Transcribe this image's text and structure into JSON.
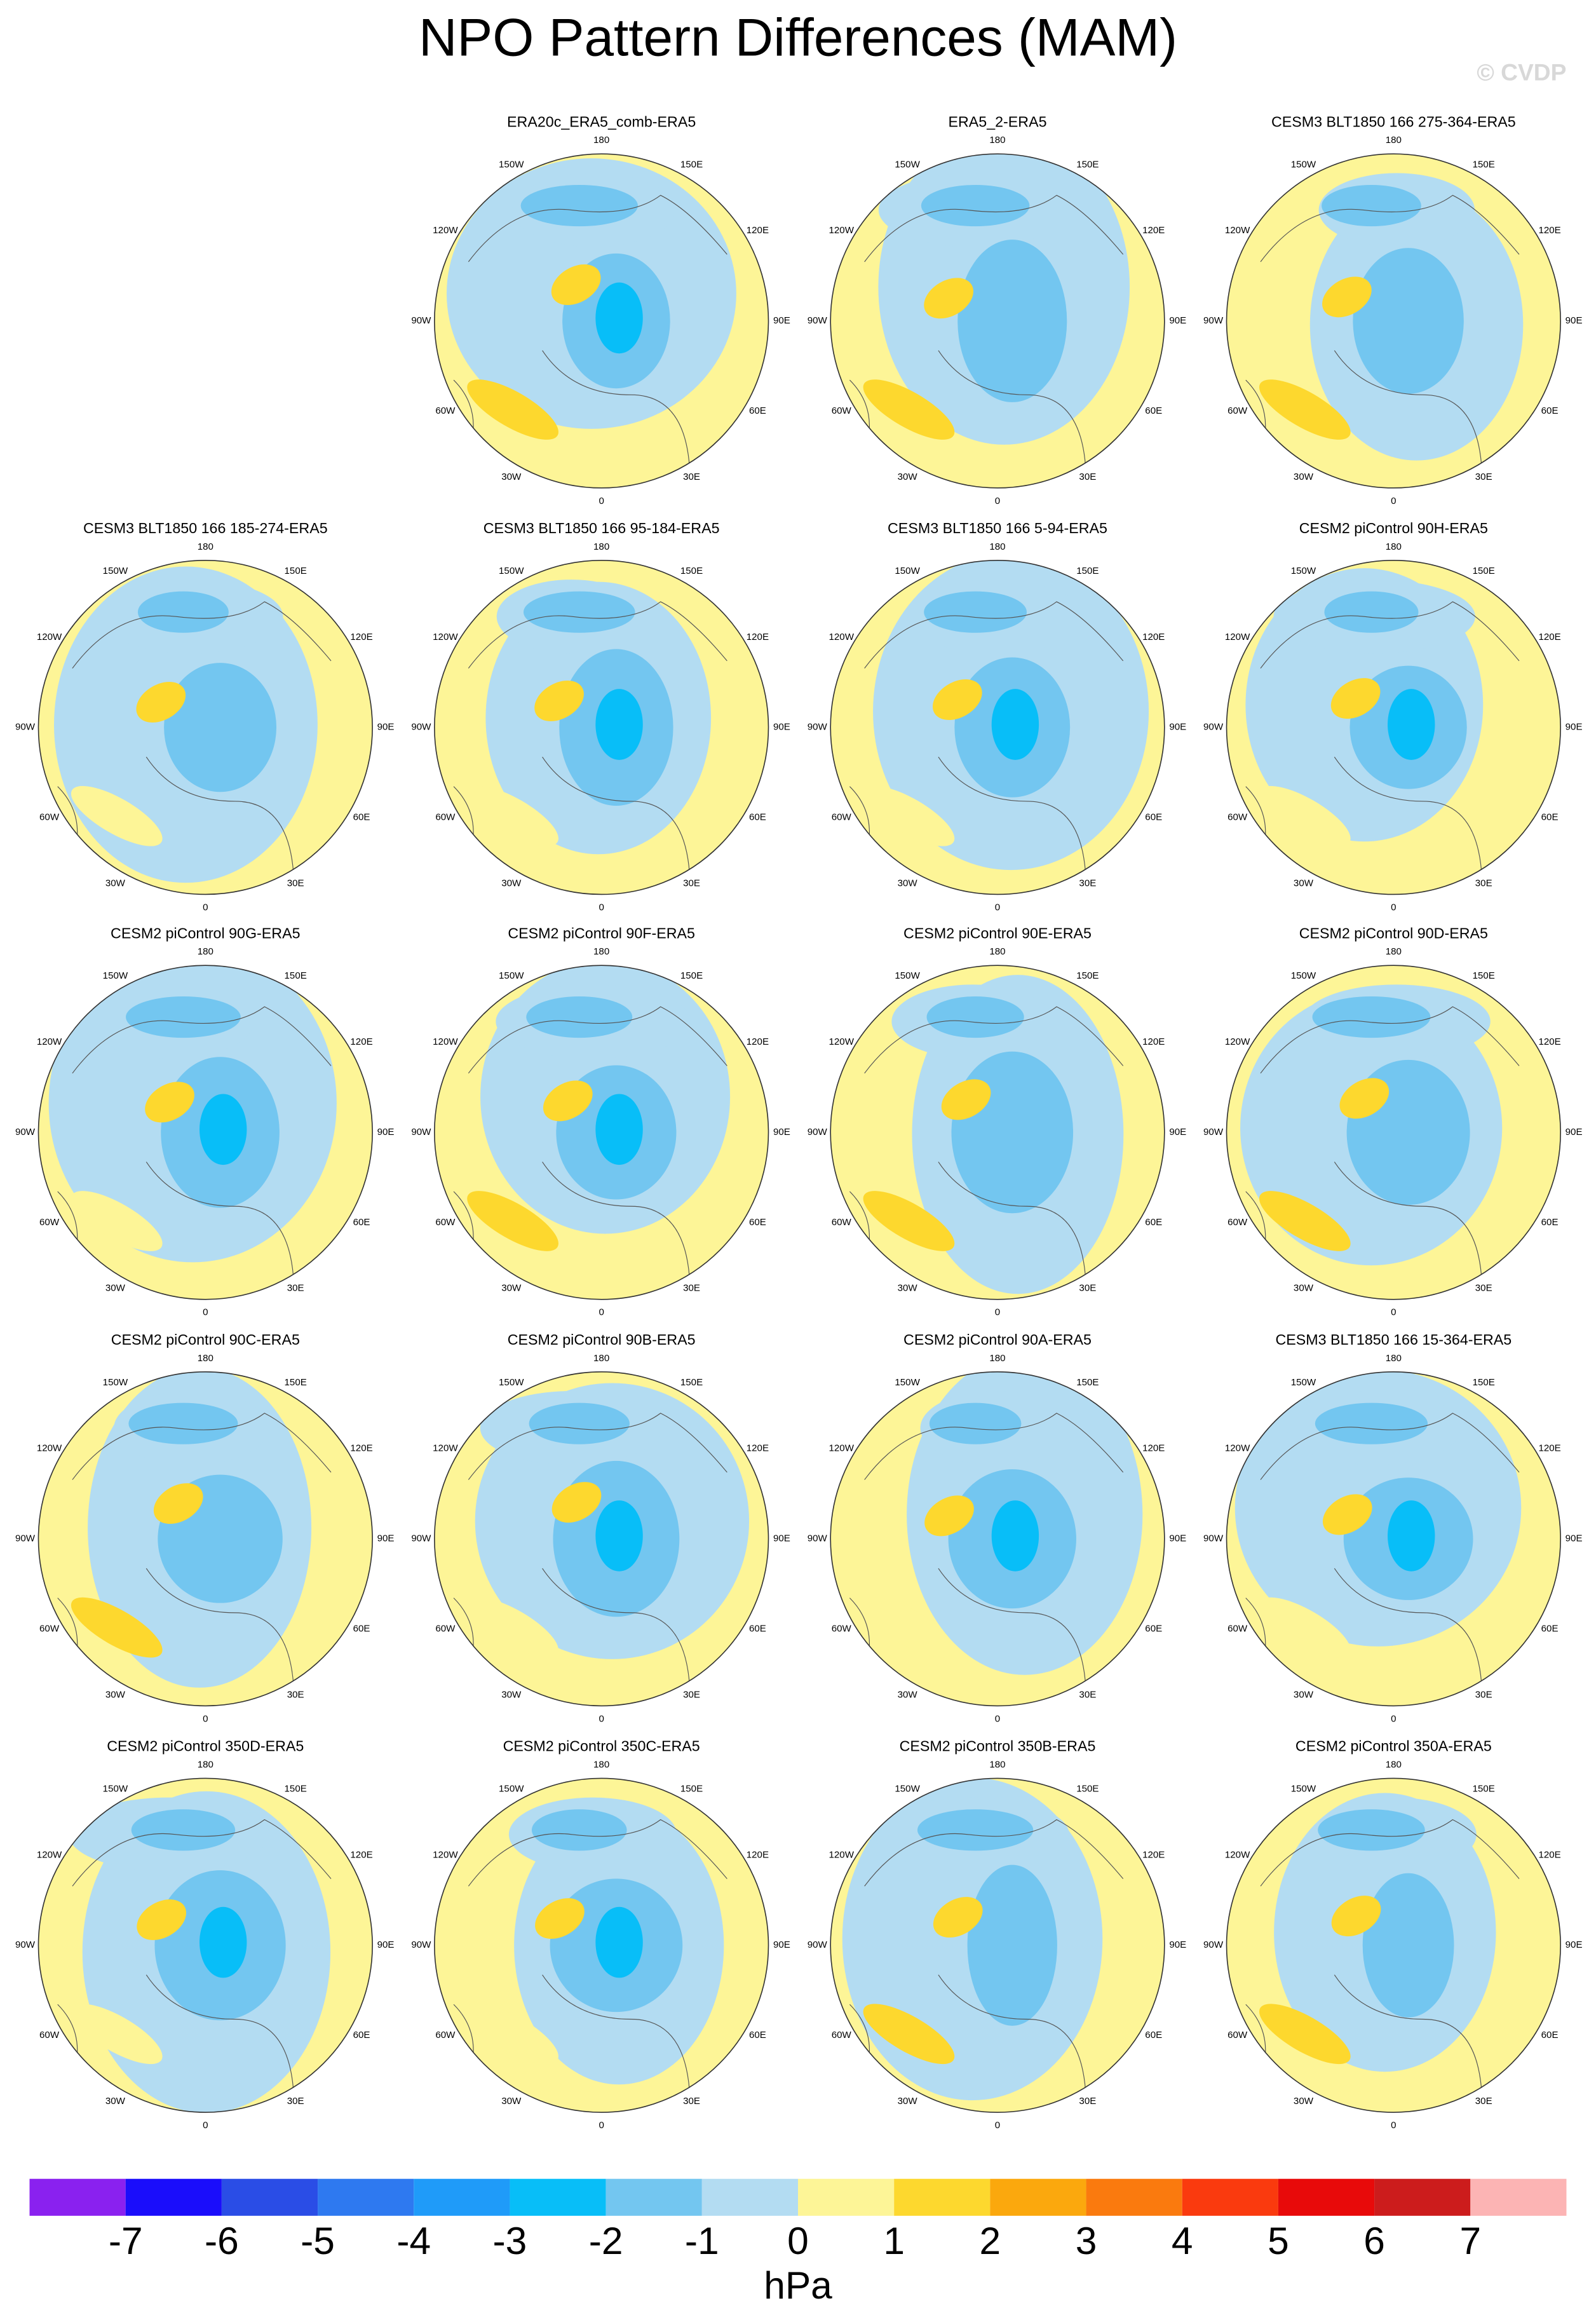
{
  "chart_data": {
    "type": "polar-map-grid",
    "title": "NPO Pattern Differences (MAM)",
    "watermark": "© CVDP",
    "longitude_labels": [
      "0",
      "30E",
      "60E",
      "90E",
      "120E",
      "150E",
      "180",
      "150W",
      "120W",
      "90W",
      "60W",
      "30W"
    ],
    "panels": [
      {
        "title": "ERA20c_ERA5_comb-ERA5",
        "row": 0,
        "col": 1
      },
      {
        "title": "ERA5_2-ERA5",
        "row": 0,
        "col": 2
      },
      {
        "title": "CESM3 BLT1850 166 275-364-ERA5",
        "row": 0,
        "col": 3
      },
      {
        "title": "CESM3 BLT1850 166 185-274-ERA5",
        "row": 1,
        "col": 0
      },
      {
        "title": "CESM3 BLT1850 166 95-184-ERA5",
        "row": 1,
        "col": 1
      },
      {
        "title": "CESM3 BLT1850 166 5-94-ERA5",
        "row": 1,
        "col": 2
      },
      {
        "title": "CESM2 piControl 90H-ERA5",
        "row": 1,
        "col": 3
      },
      {
        "title": "CESM2 piControl 90G-ERA5",
        "row": 2,
        "col": 0
      },
      {
        "title": "CESM2 piControl 90F-ERA5",
        "row": 2,
        "col": 1
      },
      {
        "title": "CESM2 piControl 90E-ERA5",
        "row": 2,
        "col": 2
      },
      {
        "title": "CESM2 piControl 90D-ERA5",
        "row": 2,
        "col": 3
      },
      {
        "title": "CESM2 piControl 90C-ERA5",
        "row": 3,
        "col": 0
      },
      {
        "title": "CESM2 piControl 90B-ERA5",
        "row": 3,
        "col": 1
      },
      {
        "title": "CESM2 piControl 90A-ERA5",
        "row": 3,
        "col": 2
      },
      {
        "title": "CESM3 BLT1850 166 15-364-ERA5",
        "row": 3,
        "col": 3
      },
      {
        "title": "CESM2 piControl 350D-ERA5",
        "row": 4,
        "col": 0
      },
      {
        "title": "CESM2 piControl 350C-ERA5",
        "row": 4,
        "col": 1
      },
      {
        "title": "CESM2 piControl 350B-ERA5",
        "row": 4,
        "col": 2
      },
      {
        "title": "CESM2 piControl 350A-ERA5",
        "row": 4,
        "col": 3
      }
    ],
    "colorbar": {
      "colors": [
        "#8a21ef",
        "#1a0dfb",
        "#2a4de6",
        "#2e79f0",
        "#1f9bf9",
        "#08bef8",
        "#73c6f0",
        "#b3dcf2",
        "#fdf597",
        "#fdd82e",
        "#fba80d",
        "#fa7a0e",
        "#fa3a0e",
        "#e80a0a",
        "#cc1c1c",
        "#fcb4b4"
      ],
      "ticks": [
        -7,
        -6,
        -5,
        -4,
        -3,
        -2,
        -1,
        0,
        1,
        2,
        3,
        4,
        5,
        6,
        7
      ],
      "label": "hPa"
    }
  }
}
